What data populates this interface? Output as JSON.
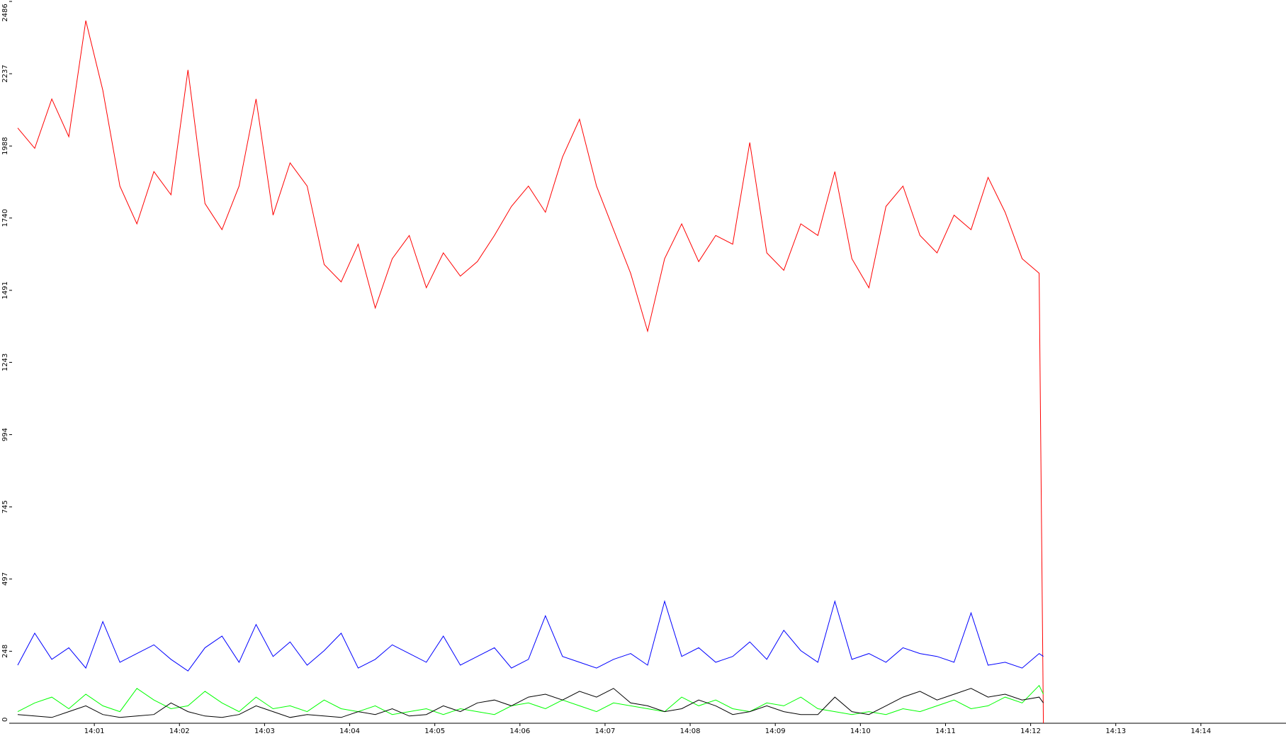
{
  "chart_data": {
    "type": "line",
    "x": [
      0.1,
      0.3,
      0.5,
      0.7,
      0.9,
      1.1,
      1.3,
      1.5,
      1.7,
      1.9,
      2.1,
      2.3,
      2.5,
      2.7,
      2.9,
      3.1,
      3.3,
      3.5,
      3.7,
      3.9,
      4.1,
      4.3,
      4.5,
      4.7,
      4.9,
      5.1,
      5.3,
      5.5,
      5.7,
      5.9,
      6.1,
      6.3,
      6.5,
      6.7,
      6.9,
      7.1,
      7.3,
      7.5,
      7.7,
      7.9,
      8.1,
      8.3,
      8.5,
      8.7,
      8.9,
      9.1,
      9.3,
      9.5,
      9.7,
      9.9,
      10.1,
      10.3,
      10.5,
      10.7,
      10.9,
      11.1,
      11.3,
      11.5,
      11.7,
      11.9,
      12.1,
      12.15
    ],
    "series": [
      {
        "color": "#ff0000",
        "values": [
          2050,
          1980,
          2150,
          2020,
          2420,
          2180,
          1850,
          1720,
          1900,
          1820,
          2250,
          1790,
          1700,
          1850,
          2150,
          1750,
          1930,
          1850,
          1580,
          1520,
          1650,
          1430,
          1600,
          1680,
          1500,
          1620,
          1540,
          1590,
          1680,
          1780,
          1850,
          1760,
          1950,
          2080,
          1850,
          1700,
          1550,
          1350,
          1600,
          1720,
          1590,
          1680,
          1650,
          2000,
          1620,
          1560,
          1720,
          1680,
          1900,
          1600,
          1500,
          1780,
          1850,
          1680,
          1620,
          1750,
          1700,
          1880,
          1760,
          1600,
          1550,
          0
        ]
      },
      {
        "color": "#0000ff",
        "values": [
          200,
          310,
          220,
          260,
          190,
          350,
          210,
          240,
          270,
          220,
          180,
          260,
          300,
          210,
          340,
          230,
          280,
          200,
          250,
          310,
          190,
          220,
          270,
          240,
          210,
          300,
          200,
          230,
          260,
          190,
          220,
          370,
          230,
          210,
          190,
          220,
          240,
          200,
          420,
          230,
          260,
          210,
          230,
          280,
          220,
          320,
          250,
          210,
          420,
          220,
          240,
          210,
          260,
          240,
          230,
          210,
          380,
          200,
          210,
          190,
          240,
          230
        ]
      },
      {
        "color": "#00ff00",
        "values": [
          40,
          70,
          90,
          50,
          100,
          60,
          40,
          120,
          80,
          50,
          60,
          110,
          70,
          40,
          90,
          50,
          60,
          40,
          80,
          50,
          40,
          60,
          30,
          40,
          50,
          30,
          50,
          40,
          30,
          60,
          70,
          50,
          80,
          60,
          40,
          70,
          60,
          50,
          40,
          90,
          60,
          80,
          50,
          40,
          70,
          60,
          90,
          50,
          40,
          30,
          40,
          30,
          50,
          40,
          60,
          80,
          50,
          60,
          90,
          70,
          130,
          100
        ]
      },
      {
        "color": "#000000",
        "values": [
          30,
          25,
          20,
          40,
          60,
          30,
          20,
          25,
          30,
          70,
          40,
          25,
          20,
          30,
          60,
          40,
          20,
          30,
          25,
          20,
          40,
          30,
          50,
          25,
          30,
          60,
          40,
          70,
          80,
          60,
          90,
          100,
          80,
          110,
          90,
          120,
          70,
          60,
          40,
          50,
          80,
          60,
          30,
          40,
          60,
          40,
          30,
          30,
          90,
          40,
          30,
          60,
          90,
          110,
          80,
          100,
          120,
          90,
          100,
          80,
          90,
          70
        ]
      }
    ],
    "xlim": [
      0,
      15
    ],
    "xticks": [
      {
        "value": 1,
        "label": "14:01"
      },
      {
        "value": 2,
        "label": "14:02"
      },
      {
        "value": 3,
        "label": "14:03"
      },
      {
        "value": 4,
        "label": "14:04"
      },
      {
        "value": 5,
        "label": "14:05"
      },
      {
        "value": 6,
        "label": "14:06"
      },
      {
        "value": 7,
        "label": "14:07"
      },
      {
        "value": 8,
        "label": "14:08"
      },
      {
        "value": 9,
        "label": "14:09"
      },
      {
        "value": 10,
        "label": "14:10"
      },
      {
        "value": 11,
        "label": "14:11"
      },
      {
        "value": 12,
        "label": "14:12"
      },
      {
        "value": 13,
        "label": "14:13"
      },
      {
        "value": 14,
        "label": "14:14"
      }
    ],
    "ylim": [
      0,
      2486
    ],
    "yticks": [
      0,
      248,
      497,
      745,
      994,
      1243,
      1491,
      1740,
      1988,
      2237,
      2486
    ]
  }
}
